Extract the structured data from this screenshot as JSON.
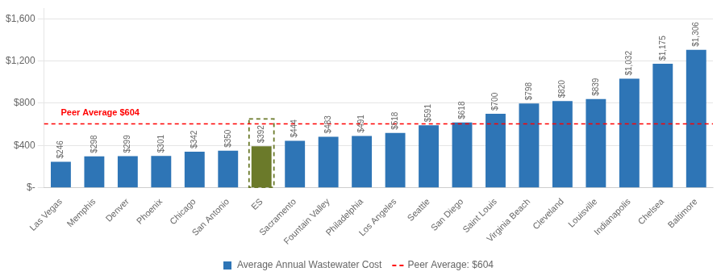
{
  "chart_data": {
    "type": "bar",
    "categories": [
      "Las Vegas",
      "Memphis",
      "Denver",
      "Phoenix",
      "Chicago",
      "San Antonio",
      "ES",
      "Sacramento",
      "Fountain Valley",
      "Philadelphia",
      "Los Angeles",
      "Seattle",
      "San Diego",
      "Saint Louis",
      "Virginia Beach",
      "Cleveland",
      "Louisville",
      "Indianapolis",
      "Chelsea",
      "Baltimore"
    ],
    "series": [
      {
        "name": "Average Annual Wastewater Cost",
        "color": "#2E75B6",
        "colors": [
          "#2E75B6",
          "#2E75B6",
          "#2E75B6",
          "#2E75B6",
          "#2E75B6",
          "#2E75B6",
          "#6B7A2A",
          "#2E75B6",
          "#2E75B6",
          "#2E75B6",
          "#2E75B6",
          "#2E75B6",
          "#2E75B6",
          "#2E75B6",
          "#2E75B6",
          "#2E75B6",
          "#2E75B6",
          "#2E75B6",
          "#2E75B6",
          "#2E75B6"
        ],
        "values": [
          246,
          298,
          299,
          301,
          342,
          350,
          392,
          444,
          483,
          491,
          518,
          591,
          618,
          700,
          798,
          820,
          839,
          1032,
          1175,
          1306
        ],
        "value_labels": [
          "$246",
          "$298",
          "$299",
          "$301",
          "$342",
          "$350",
          "$392",
          "$444",
          "$483",
          "$491",
          "$518",
          "$591",
          "$618",
          "$700",
          "$798",
          "$820",
          "$839",
          "$1,032",
          "$1,175",
          "$1,306"
        ]
      }
    ],
    "reference_lines": [
      {
        "value": 604,
        "name": "Peer Average: $604",
        "label": "Peer Average $604",
        "color": "#FF0000",
        "line_style": "dashed"
      }
    ],
    "highlight": {
      "category": "ES",
      "color": "#6B7A2A",
      "line_style": "dashed"
    },
    "ylim": [
      0,
      1700
    ],
    "yticks": [
      {
        "value": 0,
        "label": "$-"
      },
      {
        "value": 400,
        "label": "$400"
      },
      {
        "value": 800,
        "label": "$800"
      },
      {
        "value": 1200,
        "label": "$1,200"
      },
      {
        "value": 1600,
        "label": "$1,600"
      }
    ],
    "grid": true,
    "legend": "bottom",
    "data_labels": true
  }
}
